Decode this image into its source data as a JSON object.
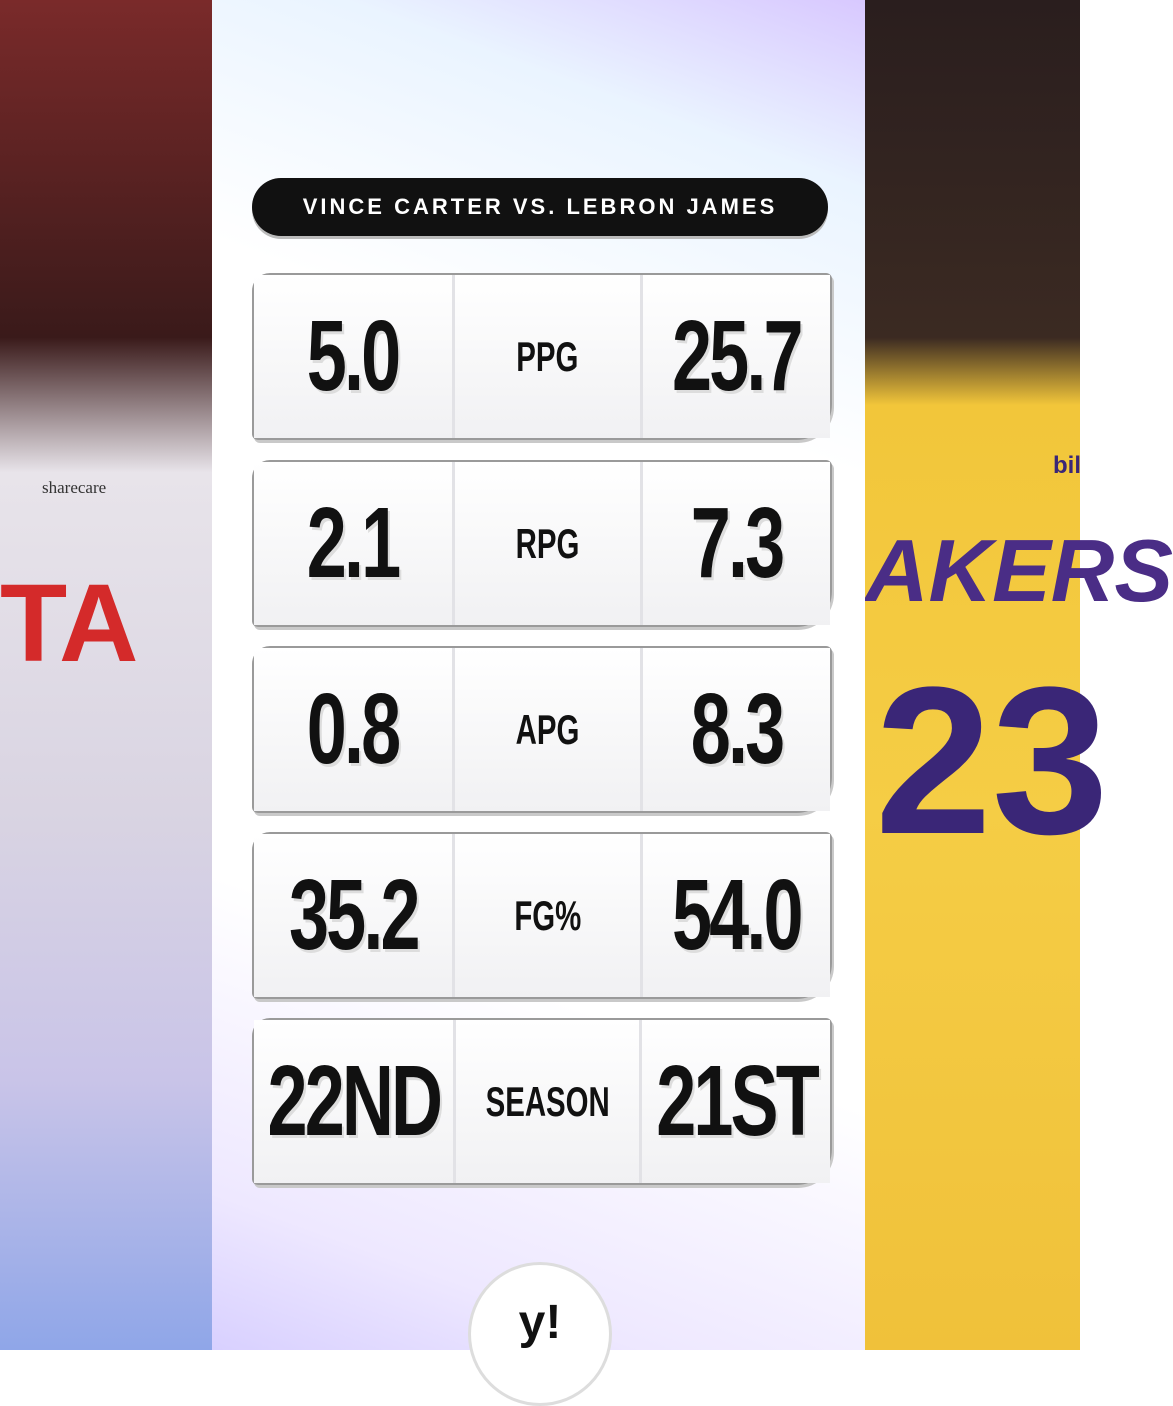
{
  "header": {
    "title": "VINCE CARTER VS. LEBRON JAMES"
  },
  "table": {
    "rows": [
      {
        "left": "5.0",
        "label": "PPG",
        "right": "25.7"
      },
      {
        "left": "2.1",
        "label": "RPG",
        "right": "7.3"
      },
      {
        "left": "0.8",
        "label": "APG",
        "right": "8.3"
      },
      {
        "left": "35.2",
        "label": "FG%",
        "right": "54.0"
      },
      {
        "left": "22ND",
        "label": "SEASON",
        "right": "21ST"
      }
    ]
  },
  "photos": {
    "left": {
      "jersey": [
        "sharecare",
        "TA"
      ]
    },
    "right": {
      "jersey": [
        "AKERS",
        "23",
        "bil"
      ]
    }
  },
  "footer": {
    "logo": "y!"
  }
}
